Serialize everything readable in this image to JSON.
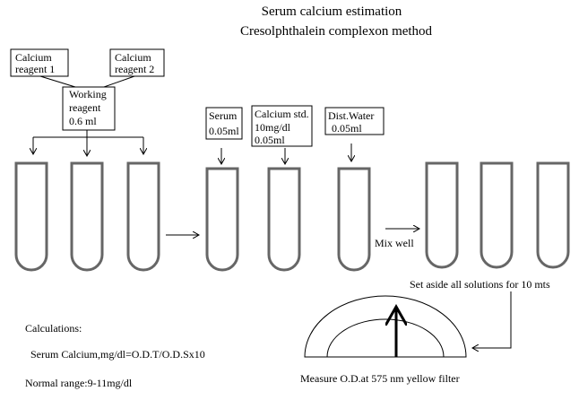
{
  "title": [
    "Serum calcium estimation",
    "Cresolphthalein complexon method"
  ],
  "reagent_1": [
    "Calcium",
    "reagent 1"
  ],
  "reagent_2": [
    "Calcium",
    "reagent 2"
  ],
  "working_reagent": [
    "Working",
    "reagent",
    "0.6 ml"
  ],
  "serum": [
    "Serum",
    "0.05ml"
  ],
  "standard": [
    "Calcium std.",
    "10mg/dl",
    "0.05ml"
  ],
  "water": [
    "Dist.Water",
    "0.05ml"
  ],
  "mix": "Mix well",
  "set_aside": "Set aside all solutions for 10 mts",
  "calculations": {
    "heading": "Calculations:",
    "formula": "Serum Calcium,mg/dl=O.D.T/O.D.Sx10",
    "normal_range": "Normal range:9-11mg/dl"
  },
  "measure": "Measure O.D.at 575 nm yellow filter"
}
